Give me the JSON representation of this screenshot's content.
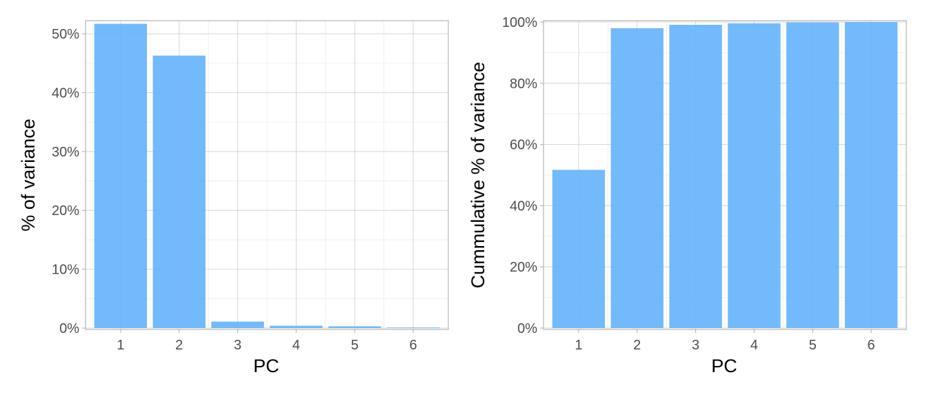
{
  "colors": {
    "bar": "#63b3fc"
  },
  "chart_data": [
    {
      "type": "bar",
      "title": "",
      "xlabel": "PC",
      "ylabel": "% of variance",
      "categories": [
        "1",
        "2",
        "3",
        "4",
        "5",
        "6"
      ],
      "values": [
        51.7,
        46.3,
        1.1,
        0.4,
        0.3,
        0.1
      ],
      "ylim": [
        0,
        52
      ],
      "yticks": [
        0,
        10,
        20,
        30,
        40,
        50
      ],
      "ytick_labels": [
        "0%",
        "10%",
        "20%",
        "30%",
        "40%",
        "50%"
      ],
      "grid": true,
      "legend": "none"
    },
    {
      "type": "bar",
      "title": "",
      "xlabel": "PC",
      "ylabel": "Cummulative % of variance",
      "categories": [
        "1",
        "2",
        "3",
        "4",
        "5",
        "6"
      ],
      "values": [
        51.7,
        98.0,
        99.1,
        99.6,
        99.9,
        100.0
      ],
      "ylim": [
        0,
        100
      ],
      "yticks": [
        0,
        20,
        40,
        60,
        80,
        100
      ],
      "ytick_labels": [
        "0%",
        "20%",
        "40%",
        "60%",
        "80%",
        "100%"
      ],
      "grid": true,
      "legend": "none"
    }
  ]
}
